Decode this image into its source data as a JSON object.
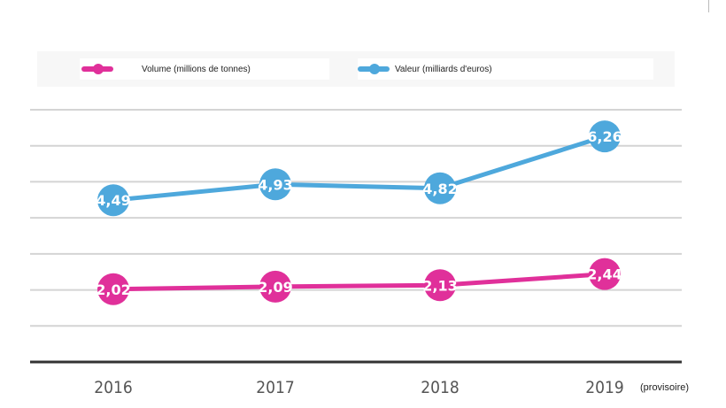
{
  "chart_data": {
    "type": "line",
    "categories": [
      "2016",
      "2017",
      "2018",
      "2019"
    ],
    "category_note": "(provisoire)",
    "ylim": [
      0,
      7
    ],
    "grid": true,
    "legend_placement": "top",
    "series": [
      {
        "name": "Volume (millions de tonnes)",
        "color": "#e0309a",
        "values": [
          2.02,
          2.09,
          2.13,
          2.44
        ],
        "labels": [
          "2,02",
          "2,09",
          "2,13",
          "2,44"
        ]
      },
      {
        "name": "Valeur (milliards d'euros)",
        "color": "#4ea8dc",
        "values": [
          4.49,
          4.93,
          4.82,
          6.26
        ],
        "labels": [
          "4,49",
          "4,93",
          "4,82",
          "6,26"
        ]
      }
    ]
  }
}
